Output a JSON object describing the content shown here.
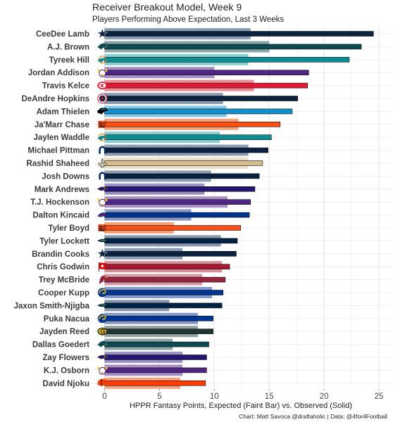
{
  "chart_data": {
    "type": "bar",
    "orientation": "horizontal",
    "title": "Receiver Breakout Model, Week 9",
    "subtitle": "Players Performing Above Expectation, Last 3 Weeks",
    "xlabel": "HPPR Fantasy Points, Expected (Faint Bar) vs. Observed (Solid)",
    "caption": "Chart: Matt Savoca @draftaholic | Data: @4for4Football",
    "xlim": [
      -1,
      26
    ],
    "xticks": [
      "0",
      "5",
      "10",
      "15",
      "20",
      "25"
    ],
    "grid": true,
    "series": [
      {
        "name": "Expected",
        "style": "faint"
      },
      {
        "name": "Observed",
        "style": "solid"
      }
    ],
    "players": [
      {
        "name": "CeeDee Lamb",
        "team_icon": "cowboys-star-icon",
        "expected": 13.3,
        "observed": 24.5,
        "color": "#0a2240",
        "faint": "#8a9db6"
      },
      {
        "name": "A.J. Brown",
        "team_icon": "eagles-icon",
        "expected": 15.0,
        "observed": 23.4,
        "color": "#0b4a50",
        "faint": "#8ba6a8"
      },
      {
        "name": "Tyreek Hill",
        "team_icon": "dolphins-icon",
        "expected": 13.1,
        "observed": 22.3,
        "color": "#0e8d92",
        "faint": "#86d0d1"
      },
      {
        "name": "Jordan Addison",
        "team_icon": "vikings-icon",
        "expected": 10.0,
        "observed": 18.6,
        "color": "#4f2683",
        "faint": "#a78fc6"
      },
      {
        "name": "Travis Kelce",
        "team_icon": "chiefs-icon",
        "expected": 13.6,
        "observed": 18.5,
        "color": "#e31837",
        "faint": "#f08a97"
      },
      {
        "name": "DeAndre Hopkins",
        "team_icon": "titans-icon",
        "expected": 10.8,
        "observed": 17.6,
        "color": "#0c2340",
        "faint": "#8fa0b5"
      },
      {
        "name": "Adam Thielen",
        "team_icon": "panthers-icon",
        "expected": 11.1,
        "observed": 17.1,
        "color": "#0f8fcc",
        "faint": "#82c6e8"
      },
      {
        "name": "Ja'Marr Chase",
        "team_icon": "bengals-icon",
        "expected": 12.2,
        "observed": 16.0,
        "color": "#fb4f14",
        "faint": "#f7a07a"
      },
      {
        "name": "Jaylen Waddle",
        "team_icon": "dolphins-icon",
        "expected": 10.5,
        "observed": 15.2,
        "color": "#0e8d92",
        "faint": "#86d0d1"
      },
      {
        "name": "Michael Pittman",
        "team_icon": "colts-horseshoe-icon",
        "expected": 13.1,
        "observed": 14.9,
        "color": "#0a2240",
        "faint": "#8fa0b5"
      },
      {
        "name": "Rashid Shaheed",
        "team_icon": "saints-fleur-icon",
        "expected": 13.1,
        "observed": 14.4,
        "color": "#d3bc8d",
        "faint": "#ece0c8"
      },
      {
        "name": "Josh Downs",
        "team_icon": "colts-horseshoe-icon",
        "expected": 9.7,
        "observed": 14.1,
        "color": "#0a2240",
        "faint": "#8fa0b5"
      },
      {
        "name": "Mark Andrews",
        "team_icon": "ravens-icon",
        "expected": 9.1,
        "observed": 13.7,
        "color": "#241773",
        "faint": "#9b93c4"
      },
      {
        "name": "T.J. Hockenson",
        "team_icon": "vikings-icon",
        "expected": 11.2,
        "observed": 13.3,
        "color": "#4f2683",
        "faint": "#a78fc6"
      },
      {
        "name": "Dalton Kincaid",
        "team_icon": "bills-icon",
        "expected": 7.9,
        "observed": 13.2,
        "color": "#00338d",
        "faint": "#8596c6"
      },
      {
        "name": "Tyler Boyd",
        "team_icon": "bengals-icon",
        "expected": 6.3,
        "observed": 12.4,
        "color": "#fb4f14",
        "faint": "#f7a07a"
      },
      {
        "name": "Tyler Lockett",
        "team_icon": "seahawks-icon",
        "expected": 10.6,
        "observed": 12.1,
        "color": "#002244",
        "faint": "#8797ad"
      },
      {
        "name": "Brandin Cooks",
        "team_icon": "cowboys-star-icon",
        "expected": 7.1,
        "observed": 12.0,
        "color": "#0a2240",
        "faint": "#8a9db6"
      },
      {
        "name": "Chris Godwin",
        "team_icon": "buccaneers-flag-icon",
        "expected": 10.7,
        "observed": 11.4,
        "color": "#a71930",
        "faint": "#d88d98"
      },
      {
        "name": "Trey McBride",
        "team_icon": "cardinals-icon",
        "expected": 8.9,
        "observed": 11.0,
        "color": "#97233f",
        "faint": "#d49aa8"
      },
      {
        "name": "Cooper Kupp",
        "team_icon": "rams-horn-icon",
        "expected": 9.8,
        "observed": 10.8,
        "color": "#003594",
        "faint": "#859acb"
      },
      {
        "name": "Jaxon Smith-Njigba",
        "team_icon": "seahawks-icon",
        "expected": 5.9,
        "observed": 10.7,
        "color": "#002244",
        "faint": "#8797ad"
      },
      {
        "name": "Puka Nacua",
        "team_icon": "rams-horn-icon",
        "expected": 8.5,
        "observed": 9.9,
        "color": "#003594",
        "faint": "#859acb"
      },
      {
        "name": "Jayden Reed",
        "team_icon": "packers-g-icon",
        "expected": 8.5,
        "observed": 9.9,
        "color": "#203731",
        "faint": "#93a29d"
      },
      {
        "name": "Dallas Goedert",
        "team_icon": "eagles-icon",
        "expected": 6.2,
        "observed": 9.5,
        "color": "#0b4a50",
        "faint": "#8ba6a8"
      },
      {
        "name": "Zay Flowers",
        "team_icon": "ravens-icon",
        "expected": 7.1,
        "observed": 9.3,
        "color": "#241773",
        "faint": "#9b93c4"
      },
      {
        "name": "K.J. Osborn",
        "team_icon": "vikings-icon",
        "expected": 7.1,
        "observed": 9.3,
        "color": "#4f2683",
        "faint": "#a78fc6"
      },
      {
        "name": "David Njoku",
        "team_icon": "browns-helmet-icon",
        "expected": 6.9,
        "observed": 9.2,
        "color": "#ff3c00",
        "faint": "#f8a17f"
      }
    ]
  }
}
